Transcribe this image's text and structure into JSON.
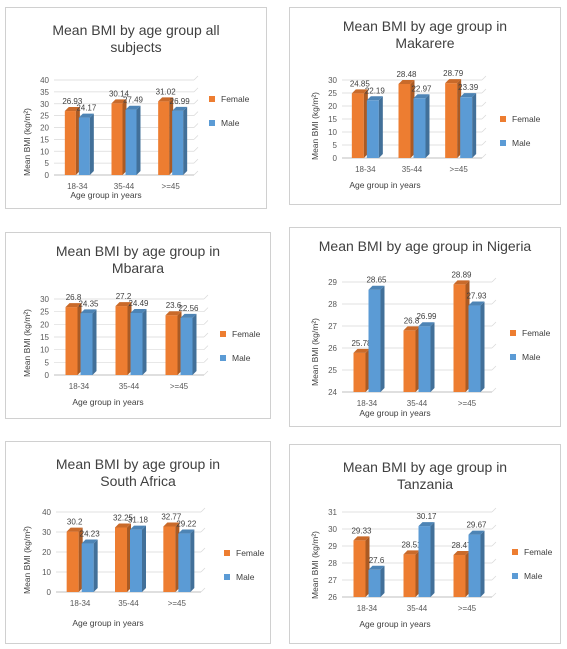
{
  "colors": {
    "female": "#ED7D31",
    "male": "#5B9BD5"
  },
  "chart_data": [
    {
      "type": "bar",
      "title": "Mean BMI by age group all subjects",
      "xlabel": "Age group in years",
      "ylabel": "Mean BMI (kg/m²)",
      "categories": [
        "18-34",
        "35-44",
        ">=45"
      ],
      "ylim": [
        0,
        40
      ],
      "yticks": [
        "0",
        "5",
        "10",
        "15",
        "20",
        "25",
        "30",
        "35",
        "40"
      ],
      "series": [
        {
          "name": "Female",
          "values": [
            26.93,
            30.14,
            31.02
          ],
          "labels": [
            "26.93",
            "30.14",
            "31.02"
          ]
        },
        {
          "name": "Male",
          "values": [
            24.17,
            27.49,
            26.99
          ],
          "labels": [
            "24.17",
            "27.49",
            "26.99"
          ]
        }
      ]
    },
    {
      "type": "bar",
      "title": "Mean BMI by age group in Makarere",
      "xlabel": "Age group in years",
      "ylabel": "Mean BMI (kg/m²)",
      "categories": [
        "18-34",
        "35-44",
        ">=45"
      ],
      "ylim": [
        0,
        30
      ],
      "yticks": [
        "0",
        "5",
        "10",
        "15",
        "20",
        "25",
        "30"
      ],
      "series": [
        {
          "name": "Female",
          "values": [
            24.85,
            28.48,
            28.79
          ],
          "labels": [
            "24.85",
            "28.48",
            "28.79"
          ]
        },
        {
          "name": "Male",
          "values": [
            22.19,
            22.97,
            23.39
          ],
          "labels": [
            "22.19",
            "22.97",
            "23.39"
          ]
        }
      ]
    },
    {
      "type": "bar",
      "title": "Mean BMI by age group in Mbarara",
      "xlabel": "Age group in years",
      "ylabel": "Mean BMI (kg/m²)",
      "categories": [
        "18-34",
        "35-44",
        ">=45"
      ],
      "ylim": [
        0,
        30
      ],
      "yticks": [
        "0",
        "5",
        "10",
        "15",
        "20",
        "25",
        "30"
      ],
      "series": [
        {
          "name": "Female",
          "values": [
            26.8,
            27.2,
            23.6
          ],
          "labels": [
            "26.8",
            "27.2",
            "23.6"
          ]
        },
        {
          "name": "Male",
          "values": [
            24.35,
            24.49,
            22.56
          ],
          "labels": [
            "24.35",
            "24.49",
            "22.56"
          ]
        }
      ]
    },
    {
      "type": "bar",
      "title": "Mean BMI by age group in  Nigeria",
      "xlabel": "Age group in years",
      "ylabel": "Mean BMI (kg/m²)",
      "categories": [
        "18-34",
        "35-44",
        ">=45"
      ],
      "ylim": [
        24,
        29
      ],
      "yticks": [
        "24",
        "25",
        "26",
        "27",
        "28",
        "29"
      ],
      "series": [
        {
          "name": "Female",
          "values": [
            25.78,
            26.8,
            28.89
          ],
          "labels": [
            "25.78",
            "26.8",
            "28.89"
          ]
        },
        {
          "name": "Male",
          "values": [
            28.65,
            26.99,
            27.93
          ],
          "labels": [
            "28.65",
            "26.99",
            "27.93"
          ]
        }
      ]
    },
    {
      "type": "bar",
      "title": "Mean BMI by age group in South Africa",
      "xlabel": "Age group in years",
      "ylabel": "Mean BMI (kg/m²)",
      "categories": [
        "18-34",
        "35-44",
        ">=45"
      ],
      "ylim": [
        0,
        40
      ],
      "yticks": [
        "0",
        "10",
        "20",
        "30",
        "40"
      ],
      "series": [
        {
          "name": "Female",
          "values": [
            30.2,
            32.25,
            32.77
          ],
          "labels": [
            "30.2",
            "32.25",
            "32.77"
          ]
        },
        {
          "name": "Male",
          "values": [
            24.23,
            31.18,
            29.22
          ],
          "labels": [
            "24.23",
            "31.18",
            "29.22"
          ]
        }
      ]
    },
    {
      "type": "bar",
      "title": "Mean BMI by age group in Tanzania",
      "xlabel": "Age group in years",
      "ylabel": "Mean BMI (kg/m²)",
      "categories": [
        "18-34",
        "35-44",
        ">=45"
      ],
      "ylim": [
        26,
        31
      ],
      "yticks": [
        "26",
        "27",
        "28",
        "29",
        "30",
        "31"
      ],
      "series": [
        {
          "name": "Female",
          "values": [
            29.33,
            28.51,
            28.47
          ],
          "labels": [
            "29.33",
            "28.51",
            "28.47"
          ]
        },
        {
          "name": "Male",
          "values": [
            27.6,
            30.17,
            29.67
          ],
          "labels": [
            "27.6",
            "30.17",
            "29.67"
          ]
        }
      ]
    }
  ]
}
